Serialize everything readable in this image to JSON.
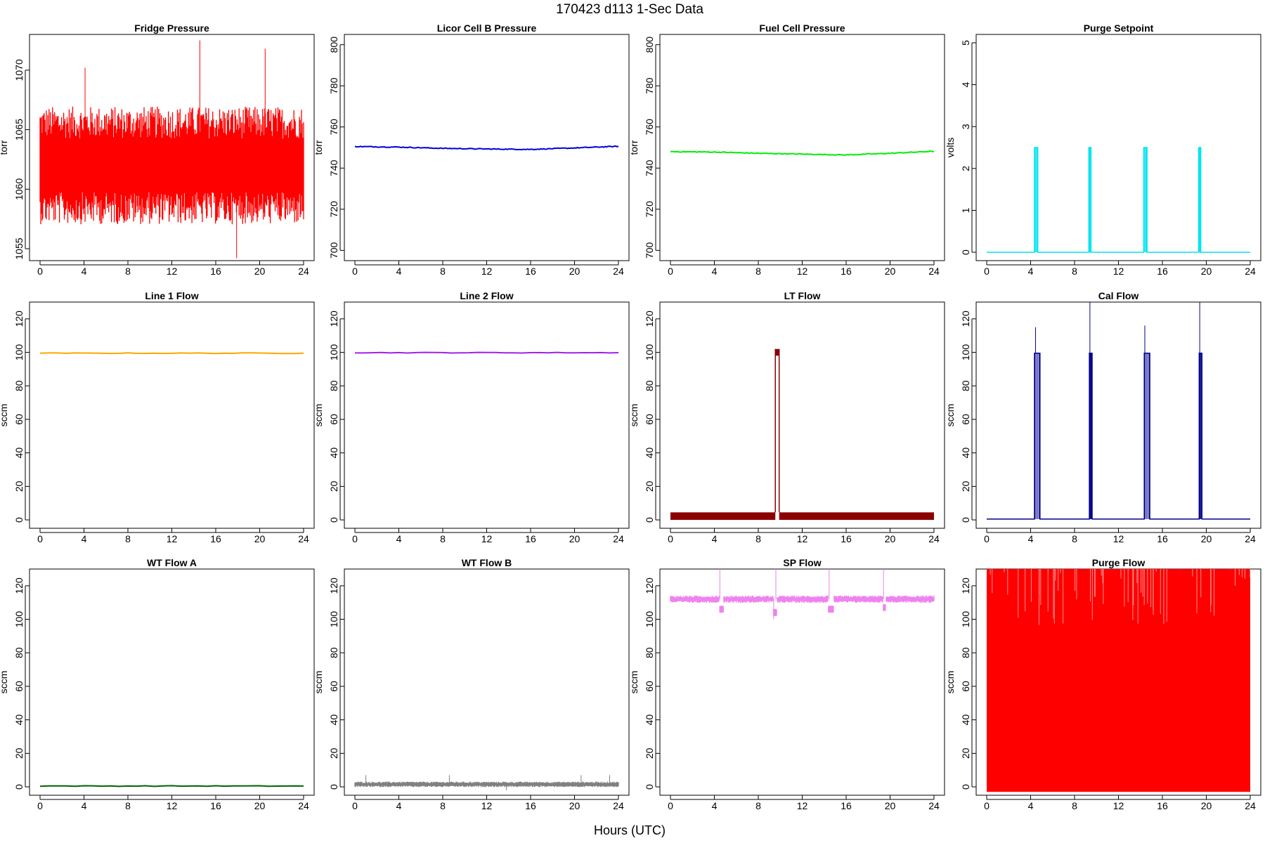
{
  "figure": {
    "title": "170423   d113   1-Sec Data",
    "xlabel": "Hours (UTC)"
  },
  "chart_data": [
    {
      "type": "line",
      "title": "Fridge Pressure",
      "ylabel": "torr",
      "color": "#ff0000",
      "xlim": [
        0,
        24
      ],
      "ylim": [
        1054,
        1073
      ],
      "x_ticks": [
        0,
        4,
        8,
        12,
        16,
        20,
        24
      ],
      "y_ticks": [
        1055,
        1060,
        1065,
        1070
      ],
      "series": [
        {
          "style": "noise",
          "base": 1062,
          "amp": 4.5,
          "spikes": [
            [
              14.55,
              1072.5
            ],
            [
              20.5,
              1071.8
            ],
            [
              17.9,
              1054.2
            ],
            [
              4.1,
              1070.2
            ]
          ]
        }
      ]
    },
    {
      "type": "line",
      "title": "Licor Cell B Pressure",
      "ylabel": "torr",
      "color": "#0000dd",
      "xlim": [
        0,
        24
      ],
      "ylim": [
        695,
        805
      ],
      "x_ticks": [
        0,
        4,
        8,
        12,
        16,
        20,
        24
      ],
      "y_ticks": [
        700,
        720,
        740,
        760,
        780,
        800
      ],
      "series": [
        {
          "style": "line",
          "points": [
            [
              0,
              750.5
            ],
            [
              4,
              750.2
            ],
            [
              8,
              749.6
            ],
            [
              12,
              749.3
            ],
            [
              16,
              749.1
            ],
            [
              20,
              749.8
            ],
            [
              24,
              750.6
            ]
          ]
        }
      ]
    },
    {
      "type": "line",
      "title": "Fuel Cell Pressure",
      "ylabel": "torr",
      "color": "#00ee00",
      "xlim": [
        0,
        24
      ],
      "ylim": [
        695,
        805
      ],
      "x_ticks": [
        0,
        4,
        8,
        12,
        16,
        20,
        24
      ],
      "y_ticks": [
        700,
        720,
        740,
        760,
        780,
        800
      ],
      "series": [
        {
          "style": "line",
          "points": [
            [
              0,
              748
            ],
            [
              4,
              747.8
            ],
            [
              8,
              747.2
            ],
            [
              12,
              746.8
            ],
            [
              16,
              746.4
            ],
            [
              20,
              747.2
            ],
            [
              24,
              748.2
            ]
          ]
        }
      ]
    },
    {
      "type": "line",
      "title": "Purge Setpoint",
      "ylabel": "volts",
      "color": "#00e5ee",
      "xlim": [
        0,
        24
      ],
      "ylim": [
        -0.2,
        5.2
      ],
      "x_ticks": [
        0,
        4,
        8,
        12,
        16,
        20,
        24
      ],
      "y_ticks": [
        0,
        1,
        2,
        3,
        4,
        5
      ],
      "series": [
        {
          "style": "pulses",
          "base": 0,
          "high": 2.5,
          "pulses": [
            [
              4.35,
              4.65
            ],
            [
              9.3,
              9.5
            ],
            [
              14.3,
              14.6
            ],
            [
              19.3,
              19.5
            ]
          ]
        }
      ]
    },
    {
      "type": "line",
      "title": "Line 1 Flow",
      "ylabel": "sccm",
      "color": "#ffa500",
      "xlim": [
        0,
        24
      ],
      "ylim": [
        -5,
        130
      ],
      "x_ticks": [
        0,
        4,
        8,
        12,
        16,
        20,
        24
      ],
      "y_ticks": [
        0,
        20,
        40,
        60,
        80,
        100,
        120
      ],
      "series": [
        {
          "style": "line",
          "points": [
            [
              0,
              99.5
            ],
            [
              24,
              99.5
            ]
          ]
        }
      ]
    },
    {
      "type": "line",
      "title": "Line 2 Flow",
      "ylabel": "sccm",
      "color": "#a020f0",
      "xlim": [
        0,
        24
      ],
      "ylim": [
        -5,
        130
      ],
      "x_ticks": [
        0,
        4,
        8,
        12,
        16,
        20,
        24
      ],
      "y_ticks": [
        0,
        20,
        40,
        60,
        80,
        100,
        120
      ],
      "series": [
        {
          "style": "line",
          "points": [
            [
              0,
              99.8
            ],
            [
              24,
              99.8
            ]
          ]
        }
      ]
    },
    {
      "type": "line",
      "title": "LT Flow",
      "ylabel": "sccm",
      "color": "#8b0000",
      "xlim": [
        0,
        24
      ],
      "ylim": [
        -5,
        130
      ],
      "x_ticks": [
        0,
        4,
        8,
        12,
        16,
        20,
        24
      ],
      "y_ticks": [
        0,
        20,
        40,
        60,
        80,
        100,
        120
      ],
      "series": [
        {
          "style": "band",
          "low": 0,
          "high": 4.5,
          "gap": [
            9.55,
            9.9
          ],
          "gap_high": 102
        }
      ]
    },
    {
      "type": "line",
      "title": "Cal Flow",
      "ylabel": "sccm",
      "color": "#00008b",
      "xlim": [
        0,
        24
      ],
      "ylim": [
        -5,
        130
      ],
      "x_ticks": [
        0,
        4,
        8,
        12,
        16,
        20,
        24
      ],
      "y_ticks": [
        0,
        20,
        40,
        60,
        80,
        100,
        120
      ],
      "series": [
        {
          "style": "pulses",
          "base": 0.5,
          "high": 99.5,
          "pulses": [
            [
              4.35,
              4.85
            ],
            [
              9.35,
              9.6
            ],
            [
              14.35,
              14.85
            ],
            [
              19.35,
              19.6
            ]
          ],
          "spikes": [
            [
              4.45,
              115
            ],
            [
              9.4,
              130
            ],
            [
              14.4,
              116
            ],
            [
              19.4,
              130
            ]
          ]
        }
      ]
    },
    {
      "type": "line",
      "title": "WT Flow A",
      "ylabel": "sccm",
      "color": "#006400",
      "xlim": [
        0,
        24
      ],
      "ylim": [
        -5,
        130
      ],
      "x_ticks": [
        0,
        4,
        8,
        12,
        16,
        20,
        24
      ],
      "y_ticks": [
        0,
        20,
        40,
        60,
        80,
        100,
        120
      ],
      "series": [
        {
          "style": "line",
          "points": [
            [
              0,
              0.5
            ],
            [
              24,
              0.5
            ]
          ]
        }
      ]
    },
    {
      "type": "line",
      "title": "WT Flow B",
      "ylabel": "sccm",
      "color": "#808080",
      "xlim": [
        0,
        24
      ],
      "ylim": [
        -5,
        130
      ],
      "x_ticks": [
        0,
        4,
        8,
        12,
        16,
        20,
        24
      ],
      "y_ticks": [
        0,
        20,
        40,
        60,
        80,
        100,
        120
      ],
      "series": [
        {
          "style": "noise",
          "base": 1.5,
          "amp": 1.5,
          "spikes": [
            [
              1.0,
              7
            ],
            [
              8.6,
              7
            ],
            [
              13.8,
              -2
            ],
            [
              20.6,
              7
            ],
            [
              23.2,
              7
            ]
          ]
        }
      ]
    },
    {
      "type": "line",
      "title": "SP Flow",
      "ylabel": "sccm",
      "color": "#ee82ee",
      "xlim": [
        0,
        24
      ],
      "ylim": [
        -5,
        130
      ],
      "x_ticks": [
        0,
        4,
        8,
        12,
        16,
        20,
        24
      ],
      "y_ticks": [
        0,
        20,
        40,
        60,
        80,
        100,
        120
      ],
      "series": [
        {
          "style": "noise",
          "base": 112,
          "amp": 2,
          "dips": [
            [
              4.45,
              4.85,
              106
            ],
            [
              9.35,
              9.7,
              104
            ],
            [
              14.35,
              14.85,
              106
            ],
            [
              19.35,
              19.6,
              107
            ]
          ],
          "spikes": [
            [
              4.5,
              130
            ],
            [
              9.4,
              100
            ],
            [
              9.6,
              130
            ],
            [
              14.45,
              130
            ],
            [
              19.4,
              130
            ]
          ]
        }
      ]
    },
    {
      "type": "line",
      "title": "Purge Flow",
      "ylabel": "sccm",
      "color": "#ff0000",
      "xlim": [
        0,
        24
      ],
      "ylim": [
        -5,
        130
      ],
      "x_ticks": [
        0,
        4,
        8,
        12,
        16,
        20,
        24
      ],
      "y_ticks": [
        0,
        20,
        40,
        60,
        80,
        100,
        120
      ],
      "series": [
        {
          "style": "fill",
          "low": -3,
          "high": 130
        }
      ]
    }
  ]
}
